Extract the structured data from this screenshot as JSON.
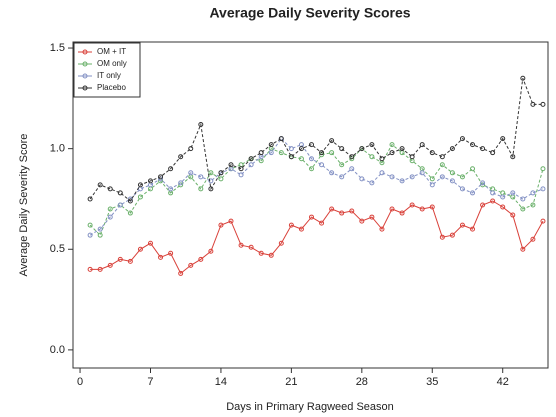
{
  "chart_data": {
    "type": "line",
    "title": "Average Daily Severity Scores",
    "x_label": "Days in Primary Ragweed Season",
    "y_label": "Average Daily Severity Score",
    "x": [
      1,
      2,
      3,
      4,
      5,
      6,
      7,
      8,
      9,
      10,
      11,
      12,
      13,
      14,
      15,
      16,
      17,
      18,
      19,
      20,
      21,
      22,
      23,
      24,
      25,
      26,
      27,
      28,
      29,
      30,
      31,
      32,
      33,
      34,
      35,
      36,
      37,
      38,
      39,
      40,
      41,
      42,
      43,
      44,
      45,
      46
    ],
    "series": [
      {
        "name": "OM + IT",
        "color": "#d9413a",
        "values": [
          0.4,
          0.4,
          0.42,
          0.45,
          0.44,
          0.5,
          0.53,
          0.46,
          0.48,
          0.38,
          0.42,
          0.45,
          0.49,
          0.62,
          0.64,
          0.52,
          0.51,
          0.48,
          0.47,
          0.53,
          0.62,
          0.6,
          0.66,
          0.63,
          0.7,
          0.68,
          0.69,
          0.64,
          0.66,
          0.6,
          0.7,
          0.68,
          0.72,
          0.7,
          0.71,
          0.56,
          0.57,
          0.62,
          0.6,
          0.72,
          0.74,
          0.71,
          0.67,
          0.5,
          0.55,
          0.64
        ]
      },
      {
        "name": "OM only",
        "color": "#6ab06a",
        "values": [
          0.62,
          0.57,
          0.7,
          0.72,
          0.68,
          0.76,
          0.8,
          0.84,
          0.78,
          0.82,
          0.86,
          0.8,
          0.88,
          0.85,
          0.9,
          0.92,
          0.95,
          0.94,
          1.0,
          0.98,
          0.96,
          0.95,
          0.9,
          0.97,
          0.98,
          0.92,
          0.95,
          1.0,
          0.96,
          0.93,
          1.02,
          0.98,
          0.94,
          0.9,
          0.85,
          0.92,
          0.88,
          0.86,
          0.9,
          0.82,
          0.8,
          0.78,
          0.76,
          0.7,
          0.72,
          0.9
        ]
      },
      {
        "name": "IT only",
        "color": "#8391c4",
        "values": [
          0.57,
          0.6,
          0.66,
          0.72,
          0.75,
          0.8,
          0.82,
          0.85,
          0.8,
          0.83,
          0.88,
          0.86,
          0.84,
          0.88,
          0.9,
          0.87,
          0.92,
          0.96,
          0.98,
          1.05,
          1.0,
          1.02,
          0.95,
          0.92,
          0.88,
          0.86,
          0.9,
          0.85,
          0.83,
          0.88,
          0.86,
          0.84,
          0.86,
          0.88,
          0.82,
          0.86,
          0.84,
          0.8,
          0.78,
          0.83,
          0.78,
          0.76,
          0.78,
          0.75,
          0.78,
          0.8
        ]
      },
      {
        "name": "Placebo",
        "color": "#333333",
        "values": [
          0.75,
          0.82,
          0.8,
          0.78,
          0.74,
          0.82,
          0.84,
          0.86,
          0.9,
          0.96,
          1.0,
          1.12,
          0.8,
          0.88,
          0.92,
          0.9,
          0.95,
          0.98,
          1.02,
          1.05,
          0.96,
          1.0,
          1.02,
          0.98,
          1.04,
          1.0,
          0.96,
          1.0,
          1.02,
          0.95,
          0.98,
          1.0,
          0.96,
          1.02,
          0.98,
          0.96,
          1.0,
          1.05,
          1.02,
          1.0,
          0.98,
          1.05,
          0.96,
          1.35,
          1.22,
          1.22
        ]
      }
    ],
    "xlim": [
      -0.7,
      46.5
    ],
    "ylim": [
      -0.09,
      1.53
    ],
    "xticks": [
      0,
      7,
      14,
      21,
      28,
      35,
      42
    ],
    "yticks": [
      {
        "value": 0,
        "label": "0.0"
      },
      {
        "value": 0.5,
        "label": "0.5"
      },
      {
        "value": 1,
        "label": "1.0"
      },
      {
        "value": 1.5,
        "label": "1.5"
      }
    ],
    "legend": "upper left",
    "grid": false
  }
}
